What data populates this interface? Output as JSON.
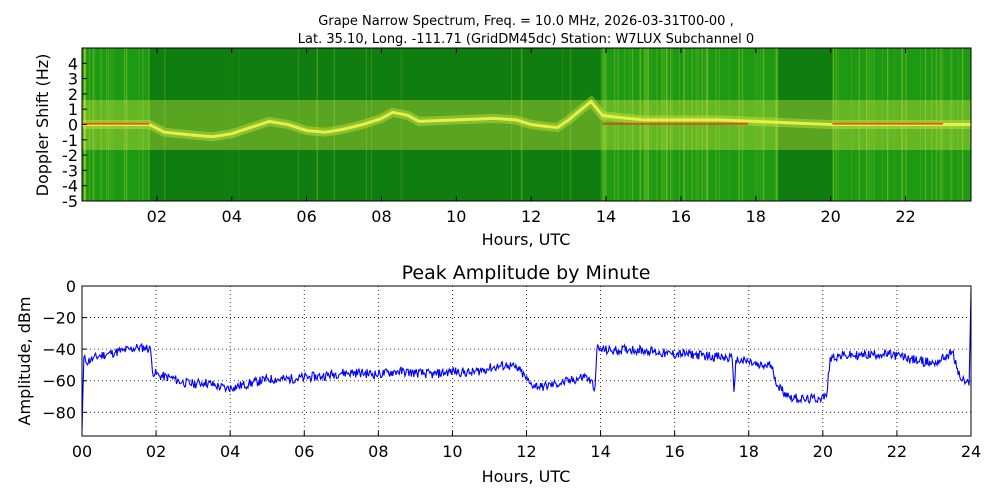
{
  "spectrum": {
    "title_line1": "Grape Narrow Spectrum, Freq. = 10.0 MHz, 2026-03-31T00-00 ,",
    "title_line2": "Lat.  35.10, Long. -111.71 (GridDM45dc) Station: W7LUX Subchannel 0"
  },
  "chart_data": [
    {
      "type": "heatmap",
      "ylabel": "Doppler Shift (Hz)",
      "xlabel": "Hours, UTC",
      "xlim": [
        0,
        23.75
      ],
      "ylim": [
        -5,
        5
      ],
      "x_ticks": [
        "02",
        "04",
        "06",
        "08",
        "10",
        "12",
        "14",
        "16",
        "18",
        "20",
        "22"
      ],
      "x_tick_values": [
        2,
        4,
        6,
        8,
        10,
        12,
        14,
        16,
        18,
        20,
        22
      ],
      "y_ticks": [
        "4",
        "3",
        "2",
        "1",
        "0",
        "-1",
        "-2",
        "-3",
        "-4",
        "-5"
      ],
      "y_tick_values": [
        4,
        3,
        2,
        1,
        0,
        -1,
        -2,
        -3,
        -4,
        -5
      ],
      "colors": {
        "background": "#0f7d0f",
        "band": "#1e9914",
        "trace": "#e6f046",
        "peak": "#e83010"
      },
      "dark_background_periods_hours": [
        [
          1.8,
          13.85
        ],
        [
          18.6,
          20.05
        ]
      ],
      "doppler_trace": {
        "x": [
          0,
          1.8,
          2.2,
          3.0,
          3.5,
          4.0,
          4.5,
          5.0,
          5.5,
          6.0,
          6.5,
          7.0,
          7.5,
          8.0,
          8.3,
          8.7,
          9.0,
          10.0,
          11.0,
          11.6,
          12.0,
          12.3,
          12.7,
          13.0,
          13.3,
          13.6,
          13.9,
          14.2,
          15.0,
          16.0,
          17.0,
          18.0,
          19.0,
          20.0,
          21.0,
          22.0,
          23.0,
          23.75
        ],
        "y": [
          0,
          0,
          -0.5,
          -0.7,
          -0.8,
          -0.6,
          -0.2,
          0.2,
          0.0,
          -0.4,
          -0.5,
          -0.3,
          0.0,
          0.4,
          0.8,
          0.6,
          0.2,
          0.3,
          0.4,
          0.3,
          0.0,
          -0.1,
          -0.2,
          0.3,
          0.9,
          1.5,
          0.6,
          0.5,
          0.3,
          0.3,
          0.3,
          0.2,
          0.1,
          0.0,
          0.0,
          0.0,
          0.0,
          0.0
        ]
      }
    },
    {
      "type": "line",
      "title": "Peak Amplitude by Minute",
      "xlabel": "Hours, UTC",
      "ylabel": "Amplitude, dBm",
      "xlim": [
        0,
        24
      ],
      "ylim": [
        -95,
        0
      ],
      "grid": true,
      "x_ticks": [
        "00",
        "02",
        "04",
        "06",
        "08",
        "10",
        "12",
        "14",
        "16",
        "18",
        "20",
        "22",
        "24"
      ],
      "x_tick_values": [
        0,
        2,
        4,
        6,
        8,
        10,
        12,
        14,
        16,
        18,
        20,
        22,
        24
      ],
      "y_ticks": [
        "0",
        "−20",
        "−40",
        "−60",
        "−80"
      ],
      "y_tick_values": [
        0,
        -20,
        -40,
        -60,
        -80
      ],
      "series": [
        {
          "color": "#0000ff",
          "x": [
            0,
            0.05,
            0.1,
            0.3,
            0.5,
            0.7,
            0.9,
            1.1,
            1.3,
            1.5,
            1.7,
            1.85,
            1.9,
            2.1,
            2.4,
            2.7,
            3.0,
            3.3,
            3.6,
            3.9,
            4.1,
            4.5,
            5.0,
            5.5,
            6.0,
            6.5,
            7.0,
            7.5,
            8.0,
            8.5,
            9.0,
            9.5,
            10.0,
            10.5,
            11.0,
            11.5,
            11.8,
            12.1,
            12.4,
            12.8,
            13.2,
            13.6,
            13.85,
            13.9,
            14.3,
            14.8,
            15.3,
            15.8,
            16.3,
            16.8,
            17.2,
            17.55,
            17.6,
            17.65,
            18.0,
            18.3,
            18.6,
            18.8,
            19.1,
            19.5,
            19.9,
            20.1,
            20.2,
            20.6,
            21.0,
            21.5,
            22.0,
            22.5,
            23.0,
            23.3,
            23.5,
            23.7,
            23.95,
            24.0
          ],
          "values": [
            -92,
            -45,
            -48,
            -46,
            -44,
            -43,
            -42,
            -41,
            -40,
            -39,
            -39,
            -40,
            -54,
            -57,
            -58,
            -61,
            -62,
            -61,
            -63,
            -65,
            -64,
            -62,
            -59,
            -59,
            -58,
            -57,
            -55,
            -55,
            -56,
            -54,
            -55,
            -56,
            -54,
            -55,
            -52,
            -50,
            -53,
            -62,
            -64,
            -62,
            -60,
            -57,
            -64,
            -40,
            -41,
            -40,
            -41,
            -43,
            -43,
            -44,
            -45,
            -46,
            -67,
            -47,
            -48,
            -51,
            -50,
            -64,
            -70,
            -72,
            -71,
            -70,
            -45,
            -44,
            -44,
            -43,
            -44,
            -47,
            -49,
            -45,
            -42,
            -58,
            -63,
            -3
          ]
        }
      ]
    }
  ]
}
